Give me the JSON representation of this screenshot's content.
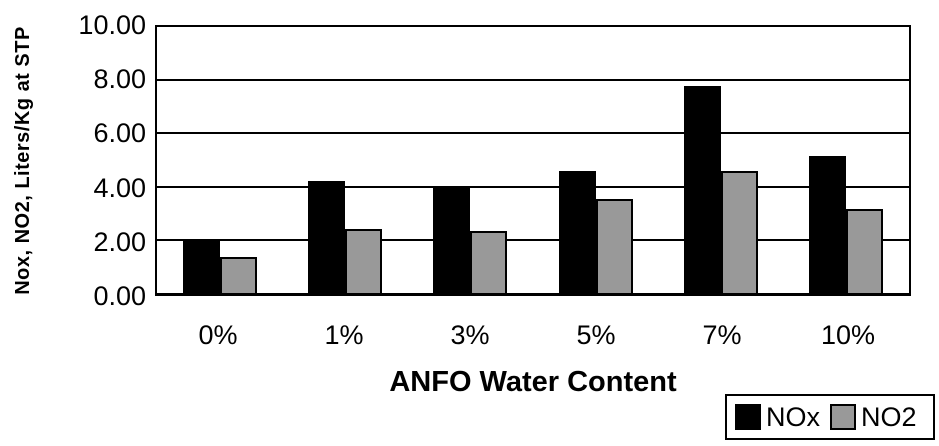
{
  "chart_data": {
    "type": "bar",
    "title": "",
    "categories": [
      "0%",
      "1%",
      "3%",
      "5%",
      "7%",
      "10%"
    ],
    "series": [
      {
        "name": "NOx",
        "color": "#000000",
        "values": [
          2.0,
          4.2,
          4.0,
          4.6,
          7.8,
          5.15
        ]
      },
      {
        "name": "NO2",
        "color": "#999999",
        "values": [
          1.35,
          2.4,
          2.35,
          3.55,
          4.6,
          3.15
        ]
      }
    ],
    "xlabel": "ANFO Water Content",
    "ylabel": "Nox, NO2, Liters/Kg at STP",
    "ylim": [
      0,
      10
    ],
    "ytick_step": 2,
    "yticks": [
      "0.00",
      "2.00",
      "4.00",
      "6.00",
      "8.00",
      "10.00"
    ],
    "grid": true,
    "legend_position": "bottom-right",
    "axis_color": "#000000",
    "background_color": "#ffffff"
  }
}
